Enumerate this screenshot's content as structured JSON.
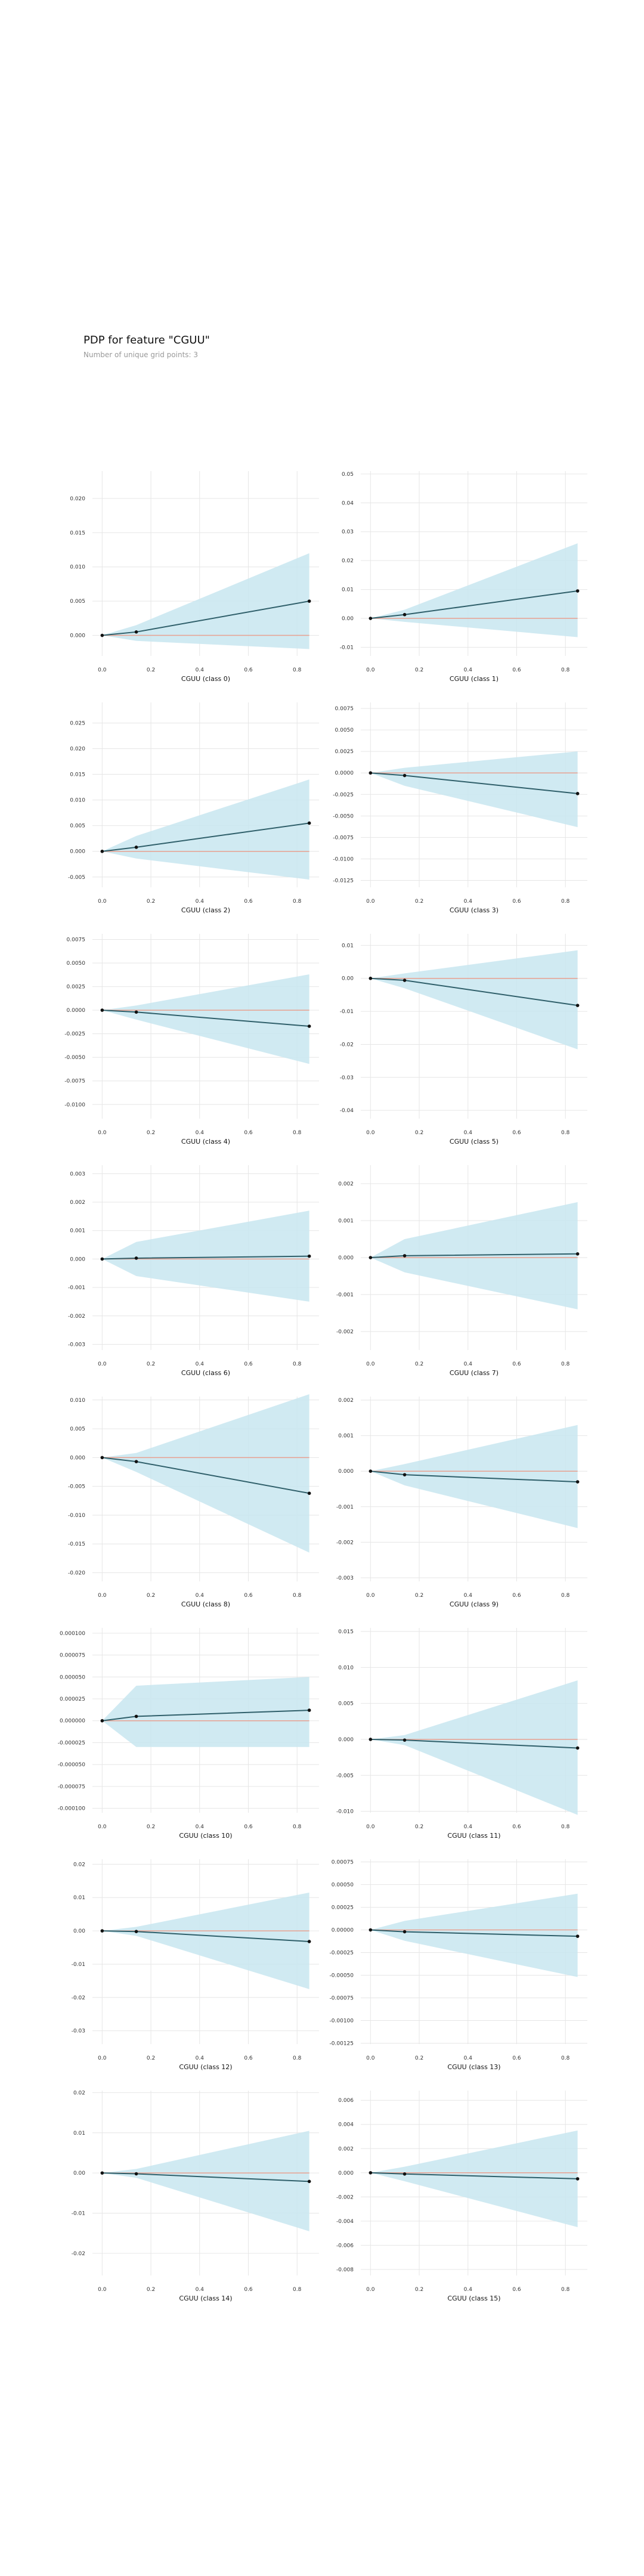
{
  "title": "PDP for feature \"CGUU\"",
  "subtitle": "Number of unique grid points: 3",
  "colors": {
    "band": "#c8e6f0",
    "line": "#2f5f6a",
    "zero": "#e8a090",
    "grid": "#e6e6e6",
    "marker": "#111111"
  },
  "chart_data": [
    {
      "type": "line",
      "xlabel": "CGUU (class 0)",
      "x": [
        0,
        0.14,
        0.85
      ],
      "y": [
        0,
        0.0005,
        0.005
      ],
      "lower": [
        0,
        -0.0008,
        -0.002
      ],
      "upper": [
        0,
        0.0015,
        0.012
      ],
      "ylim": [
        -0.003,
        0.024
      ],
      "yticks": [
        0,
        0.005,
        0.01,
        0.015,
        0.02
      ],
      "yticklabels": [
        "0.000",
        "0.005",
        "0.010",
        "0.015",
        "0.020"
      ],
      "xticks": [
        0,
        0.2,
        0.4,
        0.6,
        0.8
      ],
      "xticklabels": [
        "0.0",
        "0.2",
        "0.4",
        "0.6",
        "0.8"
      ]
    },
    {
      "type": "line",
      "xlabel": "CGUU (class 1)",
      "x": [
        0,
        0.14,
        0.85
      ],
      "y": [
        0,
        0.0013,
        0.0095
      ],
      "lower": [
        0,
        -0.0012,
        -0.0065
      ],
      "upper": [
        0,
        0.003,
        0.026
      ],
      "ylim": [
        -0.013,
        0.051
      ],
      "yticks": [
        -0.01,
        0,
        0.01,
        0.02,
        0.03,
        0.04,
        0.05
      ],
      "yticklabels": [
        "-0.01",
        "0.00",
        "0.01",
        "0.02",
        "0.03",
        "0.04",
        "0.05"
      ],
      "xticks": [
        0,
        0.2,
        0.4,
        0.6,
        0.8
      ],
      "xticklabels": [
        "0.0",
        "0.2",
        "0.4",
        "0.6",
        "0.8"
      ]
    },
    {
      "type": "line",
      "xlabel": "CGUU (class 2)",
      "x": [
        0,
        0.14,
        0.85
      ],
      "y": [
        0,
        0.0008,
        0.0055
      ],
      "lower": [
        0,
        -0.0014,
        -0.0055
      ],
      "upper": [
        0,
        0.003,
        0.014
      ],
      "ylim": [
        -0.007,
        0.029
      ],
      "yticks": [
        -0.005,
        0,
        0.005,
        0.01,
        0.015,
        0.02,
        0.025
      ],
      "yticklabels": [
        "-0.005",
        "0.000",
        "0.005",
        "0.010",
        "0.015",
        "0.020",
        "0.025"
      ],
      "xticks": [
        0,
        0.2,
        0.4,
        0.6,
        0.8
      ],
      "xticklabels": [
        "0.0",
        "0.2",
        "0.4",
        "0.6",
        "0.8"
      ]
    },
    {
      "type": "line",
      "xlabel": "CGUU (class 3)",
      "x": [
        0,
        0.14,
        0.85
      ],
      "y": [
        0,
        -0.0003,
        -0.0024
      ],
      "lower": [
        0,
        -0.0015,
        -0.0063
      ],
      "upper": [
        0,
        0.0006,
        0.0025
      ],
      "ylim": [
        -0.0133,
        0.0082
      ],
      "yticks": [
        -0.0125,
        -0.01,
        -0.0075,
        -0.005,
        -0.0025,
        0,
        0.0025,
        0.005,
        0.0075
      ],
      "yticklabels": [
        "-0.0125",
        "-0.0100",
        "-0.0075",
        "-0.0050",
        "-0.0025",
        "0.0000",
        "0.0025",
        "0.0050",
        "0.0075"
      ],
      "xticks": [
        0,
        0.2,
        0.4,
        0.6,
        0.8
      ],
      "xticklabels": [
        "0.0",
        "0.2",
        "0.4",
        "0.6",
        "0.8"
      ]
    },
    {
      "type": "line",
      "xlabel": "CGUU (class 4)",
      "x": [
        0,
        0.14,
        0.85
      ],
      "y": [
        0,
        -0.0002,
        -0.0017
      ],
      "lower": [
        0,
        -0.001,
        -0.0057
      ],
      "upper": [
        0,
        0.0005,
        0.0038
      ],
      "ylim": [
        -0.0115,
        0.0081
      ],
      "yticks": [
        -0.01,
        -0.0075,
        -0.005,
        -0.0025,
        0,
        0.0025,
        0.005,
        0.0075
      ],
      "yticklabels": [
        "-0.0100",
        "-0.0075",
        "-0.0050",
        "-0.0025",
        "0.0000",
        "0.0025",
        "0.0050",
        "0.0075"
      ],
      "xticks": [
        0,
        0.2,
        0.4,
        0.6,
        0.8
      ],
      "xticklabels": [
        "0.0",
        "0.2",
        "0.4",
        "0.6",
        "0.8"
      ]
    },
    {
      "type": "line",
      "xlabel": "CGUU (class 5)",
      "x": [
        0,
        0.14,
        0.85
      ],
      "y": [
        0,
        -0.0006,
        -0.0082
      ],
      "lower": [
        0,
        -0.003,
        -0.0215
      ],
      "upper": [
        0,
        0.0015,
        0.0085
      ],
      "ylim": [
        -0.0425,
        0.0135
      ],
      "yticks": [
        -0.04,
        -0.03,
        -0.02,
        -0.01,
        0,
        0.01
      ],
      "yticklabels": [
        "-0.04",
        "-0.03",
        "-0.02",
        "-0.01",
        "0.00",
        "0.01"
      ],
      "xticks": [
        0,
        0.2,
        0.4,
        0.6,
        0.8
      ],
      "xticklabels": [
        "0.0",
        "0.2",
        "0.4",
        "0.6",
        "0.8"
      ]
    },
    {
      "type": "line",
      "xlabel": "CGUU (class 6)",
      "x": [
        0,
        0.14,
        0.85
      ],
      "y": [
        0,
        3e-05,
        0.0001
      ],
      "lower": [
        0,
        -0.0006,
        -0.0015
      ],
      "upper": [
        0,
        0.0006,
        0.0017
      ],
      "ylim": [
        -0.0032,
        0.0033
      ],
      "yticks": [
        -0.003,
        -0.002,
        -0.001,
        0,
        0.001,
        0.002,
        0.003
      ],
      "yticklabels": [
        "-0.003",
        "-0.002",
        "-0.001",
        "0.000",
        "0.001",
        "0.002",
        "0.003"
      ],
      "xticks": [
        0,
        0.2,
        0.4,
        0.6,
        0.8
      ],
      "xticklabels": [
        "0.0",
        "0.2",
        "0.4",
        "0.6",
        "0.8"
      ]
    },
    {
      "type": "line",
      "xlabel": "CGUU (class 7)",
      "x": [
        0,
        0.14,
        0.85
      ],
      "y": [
        0,
        5e-05,
        0.0001
      ],
      "lower": [
        0,
        -0.0004,
        -0.0014
      ],
      "upper": [
        0,
        0.0005,
        0.0015
      ],
      "ylim": [
        -0.0025,
        0.0025
      ],
      "yticks": [
        -0.002,
        -0.001,
        0,
        0.001,
        0.002
      ],
      "yticklabels": [
        "-0.002",
        "-0.001",
        "0.000",
        "0.001",
        "0.002"
      ],
      "xticks": [
        0,
        0.2,
        0.4,
        0.6,
        0.8
      ],
      "xticklabels": [
        "0.0",
        "0.2",
        "0.4",
        "0.6",
        "0.8"
      ]
    },
    {
      "type": "line",
      "xlabel": "CGUU (class 8)",
      "x": [
        0,
        0.14,
        0.85
      ],
      "y": [
        0,
        -0.0007,
        -0.0062
      ],
      "lower": [
        0,
        -0.0025,
        -0.0165
      ],
      "upper": [
        0,
        0.0008,
        0.011
      ],
      "ylim": [
        -0.0215,
        0.0106
      ],
      "yticks": [
        -0.02,
        -0.015,
        -0.01,
        -0.005,
        0,
        0.005,
        0.01
      ],
      "yticklabels": [
        "-0.020",
        "-0.015",
        "-0.010",
        "-0.005",
        "0.000",
        "0.005",
        "0.010"
      ],
      "xticks": [
        0,
        0.2,
        0.4,
        0.6,
        0.8
      ],
      "xticklabels": [
        "0.0",
        "0.2",
        "0.4",
        "0.6",
        "0.8"
      ]
    },
    {
      "type": "line",
      "xlabel": "CGUU (class 9)",
      "x": [
        0,
        0.14,
        0.85
      ],
      "y": [
        0,
        -0.0001,
        -0.0003
      ],
      "lower": [
        0,
        -0.0004,
        -0.0016
      ],
      "upper": [
        0,
        0.0002,
        0.0013
      ],
      "ylim": [
        -0.0031,
        0.0021
      ],
      "yticks": [
        -0.003,
        -0.002,
        -0.001,
        0,
        0.001,
        0.002
      ],
      "yticklabels": [
        "-0.003",
        "-0.002",
        "-0.001",
        "0.000",
        "0.001",
        "0.002"
      ],
      "xticks": [
        0,
        0.2,
        0.4,
        0.6,
        0.8
      ],
      "xticklabels": [
        "0.0",
        "0.2",
        "0.4",
        "0.6",
        "0.8"
      ]
    },
    {
      "type": "line",
      "xlabel": "CGUU (class 10)",
      "x": [
        0,
        0.14,
        0.85
      ],
      "y": [
        0,
        5e-06,
        1.2e-05
      ],
      "lower": [
        0,
        -3e-05,
        -3e-05
      ],
      "upper": [
        0,
        4e-05,
        5e-05
      ],
      "ylim": [
        -0.000105,
        0.000106
      ],
      "yticks": [
        -0.0001,
        -7.5e-05,
        -5e-05,
        -2.5e-05,
        0,
        2.5e-05,
        5e-05,
        7.5e-05,
        0.0001
      ],
      "yticklabels": [
        "-0.000100",
        "-0.000075",
        "-0.000050",
        "-0.000025",
        "0.000000",
        "0.000025",
        "0.000050",
        "0.000075",
        "0.000100"
      ],
      "xticks": [
        0,
        0.2,
        0.4,
        0.6,
        0.8
      ],
      "xticklabels": [
        "0.0",
        "0.2",
        "0.4",
        "0.6",
        "0.8"
      ]
    },
    {
      "type": "line",
      "xlabel": "CGUU (class 11)",
      "x": [
        0,
        0.14,
        0.85
      ],
      "y": [
        0,
        -0.0001,
        -0.0012
      ],
      "lower": [
        0,
        -0.0008,
        -0.0105
      ],
      "upper": [
        0,
        0.0006,
        0.0082
      ],
      "ylim": [
        -0.0102,
        0.0155
      ],
      "yticks": [
        -0.01,
        -0.005,
        0,
        0.005,
        0.01,
        0.015
      ],
      "yticklabels": [
        "-0.010",
        "-0.005",
        "0.000",
        "0.005",
        "0.010",
        "0.015"
      ],
      "xticks": [
        0,
        0.2,
        0.4,
        0.6,
        0.8
      ],
      "xticklabels": [
        "0.0",
        "0.2",
        "0.4",
        "0.6",
        "0.8"
      ]
    },
    {
      "type": "line",
      "xlabel": "CGUU (class 12)",
      "x": [
        0,
        0.14,
        0.85
      ],
      "y": [
        0,
        -0.0002,
        -0.0032
      ],
      "lower": [
        0,
        -0.0015,
        -0.0175
      ],
      "upper": [
        0,
        0.0012,
        0.0115
      ],
      "ylim": [
        -0.034,
        0.0215
      ],
      "yticks": [
        -0.03,
        -0.02,
        -0.01,
        0,
        0.01,
        0.02
      ],
      "yticklabels": [
        "-0.03",
        "-0.02",
        "-0.01",
        "0.00",
        "0.01",
        "0.02"
      ],
      "xticks": [
        0,
        0.2,
        0.4,
        0.6,
        0.8
      ],
      "xticklabels": [
        "0.0",
        "0.2",
        "0.4",
        "0.6",
        "0.8"
      ]
    },
    {
      "type": "line",
      "xlabel": "CGUU (class 13)",
      "x": [
        0,
        0.14,
        0.85
      ],
      "y": [
        0,
        -2e-05,
        -7e-05
      ],
      "lower": [
        0,
        -0.00012,
        -0.00052
      ],
      "upper": [
        0,
        0.0001,
        0.0004
      ],
      "ylim": [
        -0.00126,
        0.00078
      ],
      "yticks": [
        -0.00125,
        -0.001,
        -0.00075,
        -0.0005,
        -0.00025,
        0,
        0.00025,
        0.0005,
        0.00075
      ],
      "yticklabels": [
        "-0.00125",
        "-0.00100",
        "-0.00075",
        "-0.00050",
        "-0.00025",
        "0.00000",
        "0.00025",
        "0.00050",
        "0.00075"
      ],
      "xticks": [
        0,
        0.2,
        0.4,
        0.6,
        0.8
      ],
      "xticklabels": [
        "0.0",
        "0.2",
        "0.4",
        "0.6",
        "0.8"
      ]
    },
    {
      "type": "line",
      "xlabel": "CGUU (class 14)",
      "x": [
        0,
        0.14,
        0.85
      ],
      "y": [
        0,
        -0.0002,
        -0.0021
      ],
      "lower": [
        0,
        -0.0012,
        -0.0145
      ],
      "upper": [
        0,
        0.001,
        0.0105
      ],
      "ylim": [
        -0.0255,
        0.0205
      ],
      "yticks": [
        -0.02,
        -0.01,
        0,
        0.01,
        0.02
      ],
      "yticklabels": [
        "-0.02",
        "-0.01",
        "0.00",
        "0.01",
        "0.02"
      ],
      "xticks": [
        0,
        0.2,
        0.4,
        0.6,
        0.8
      ],
      "xticklabels": [
        "0.0",
        "0.2",
        "0.4",
        "0.6",
        "0.8"
      ]
    },
    {
      "type": "line",
      "xlabel": "CGUU (class 15)",
      "x": [
        0,
        0.14,
        0.85
      ],
      "y": [
        0,
        -0.0001,
        -0.0005
      ],
      "lower": [
        0,
        -0.0007,
        -0.0045
      ],
      "upper": [
        0,
        0.0005,
        0.0035
      ],
      "ylim": [
        -0.0085,
        0.0068
      ],
      "yticks": [
        -0.008,
        -0.006,
        -0.004,
        -0.002,
        0,
        0.002,
        0.004,
        0.006
      ],
      "yticklabels": [
        "-0.008",
        "-0.006",
        "-0.004",
        "-0.002",
        "0.000",
        "0.002",
        "0.004",
        "0.006"
      ],
      "xticks": [
        0,
        0.2,
        0.4,
        0.6,
        0.8
      ],
      "xticklabels": [
        "0.0",
        "0.2",
        "0.4",
        "0.6",
        "0.8"
      ]
    }
  ]
}
